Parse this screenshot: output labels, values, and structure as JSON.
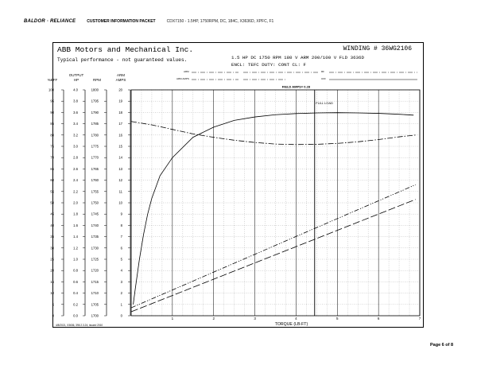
{
  "header": {
    "brand_a": "BALDOR",
    "brand_sep": "•",
    "brand_b": "RELIANCE",
    "packet": "CUSTOMER INFORMATION PACKET",
    "doc_id": "CDX7150 - 1.5HP, 1750RPM, DC, 184C, X3636D, XPFC, F1"
  },
  "sheet": {
    "company": "ABB Motors and Mechanical Inc.",
    "perf_note": "Typical performance - not guaranteed values.",
    "winding": "WINDING # 36WG2106",
    "rating_line1": "1.5 HP  DC  1750 RPM  180 V ARM  200/100 V FLD  3636D",
    "rating_line2": "ENCL: TEFC  DUTY: CONT  CL: F",
    "field_label_1": "ARM",
    "field_label_2": "ARM AMPS",
    "field_label_3": "RF",
    "field_label_4": "CFF",
    "footer_note": "4/8/2021, X3636, 396 2.3.24, issued 2010"
  },
  "page": {
    "text": "Page 6 of 8"
  },
  "chart_data": {
    "type": "line",
    "title": "",
    "field_amps_label": "FIELD AMPS= 0.28",
    "full_load_label": "FULL LOAD",
    "full_load_x": 4.45,
    "xlabel": "TORQUE (LB-FT)",
    "xlim": [
      0,
      7
    ],
    "x_ticks": [
      1,
      2,
      3,
      4,
      5,
      6,
      7
    ],
    "y_axes": [
      {
        "name": "%EFF",
        "label_lines": [
          "",
          "%EFF"
        ],
        "ticks": [
          0,
          5,
          10,
          15,
          20,
          25,
          30,
          35,
          40,
          45,
          50,
          55,
          60,
          65,
          70,
          75,
          80,
          85,
          90,
          95,
          100
        ]
      },
      {
        "name": "OUTPUT HP",
        "label_lines": [
          "OUTPUT",
          "HP"
        ],
        "ticks": [
          "0.0",
          "0.2",
          "0.4",
          "0.6",
          "0.8",
          "1.0",
          "1.2",
          "1.4",
          "1.6",
          "1.8",
          "2.0",
          "2.2",
          "2.4",
          "2.6",
          "2.8",
          "3.0",
          "3.2",
          "3.4",
          "3.6",
          "3.8",
          "4.0"
        ]
      },
      {
        "name": "RPM",
        "label_lines": [
          "",
          "RPM"
        ],
        "ticks": [
          1700,
          1705,
          1710,
          1715,
          1720,
          1725,
          1730,
          1735,
          1740,
          1745,
          1750,
          1755,
          1760,
          1765,
          1770,
          1775,
          1780,
          1785,
          1790,
          1795,
          1800
        ]
      },
      {
        "name": "ARM AMPS",
        "label_lines": [
          "ARM",
          "AMPS"
        ],
        "ticks": [
          0,
          1,
          2,
          3,
          4,
          5,
          6,
          7,
          8,
          9,
          10,
          11,
          12,
          13,
          14,
          15,
          16,
          17,
          18,
          19,
          20
        ]
      }
    ],
    "grid": true,
    "series": [
      {
        "key": "eff",
        "axis": "%EFF",
        "style": "solid",
        "x": [
          0.05,
          0.1,
          0.2,
          0.3,
          0.4,
          0.5,
          0.7,
          1.0,
          1.5,
          2.0,
          2.5,
          3.0,
          3.5,
          4.0,
          4.5,
          5.0,
          5.5,
          6.0,
          6.5,
          6.85
        ],
        "y": [
          5,
          12,
          25,
          36,
          45,
          52,
          62,
          70,
          79,
          83.5,
          86.5,
          88,
          89,
          89.5,
          89.8,
          89.9,
          89.8,
          89.6,
          89.2,
          88.8
        ]
      },
      {
        "key": "rpm",
        "axis": "RPM",
        "style": "dashdot",
        "x": [
          0,
          0.5,
          1.0,
          1.5,
          2.0,
          2.5,
          3.0,
          3.5,
          4.0,
          4.5,
          5.0,
          5.5,
          6.0,
          6.5,
          6.9
        ],
        "y": [
          1786,
          1784.5,
          1782.5,
          1780.5,
          1779,
          1777.7,
          1776.7,
          1776,
          1775.8,
          1775.9,
          1776.3,
          1777,
          1778,
          1779.2,
          1780
        ]
      },
      {
        "key": "amps_dashdotdot",
        "axis": "ARM AMPS",
        "style": "dashdotdot",
        "x": [
          0,
          6.9
        ],
        "y": [
          0.7,
          11.6
        ]
      },
      {
        "key": "amps_longdash",
        "axis": "ARM AMPS",
        "style": "longdash",
        "x": [
          0,
          6.9
        ],
        "y": [
          0.35,
          10.3
        ]
      }
    ]
  }
}
